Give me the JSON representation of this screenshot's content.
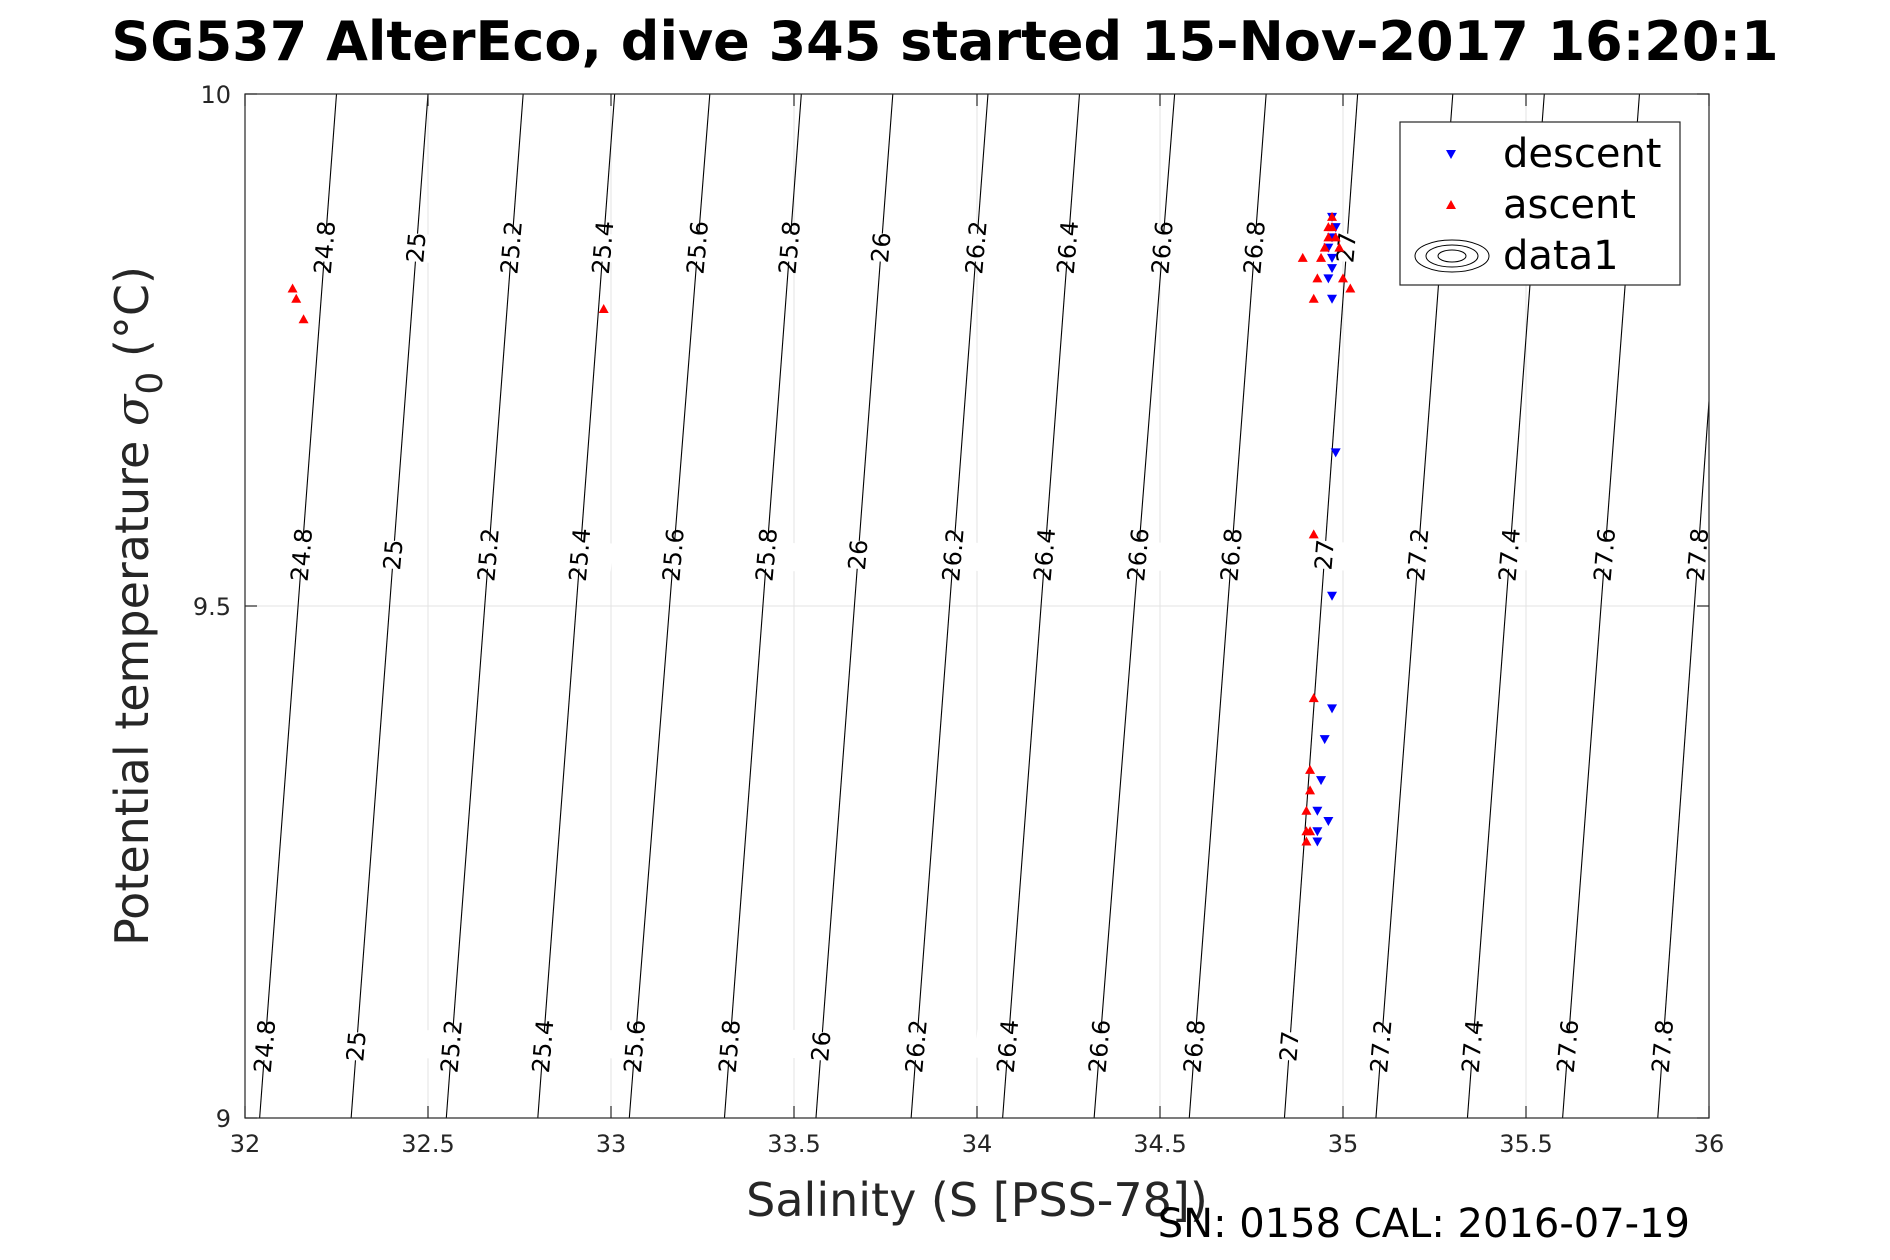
{
  "chart_data": {
    "type": "scatter",
    "title": "SG537 AlterEco, dive 345 started 15-Nov-2017 16:20:1",
    "xlabel": "Salinity (S [PSS-78])",
    "ylabel_main": "Potential temperature ",
    "ylabel_sigma": "σ",
    "ylabel_sub": "0",
    "ylabel_unit": " (°C)",
    "xlim": [
      32,
      36
    ],
    "ylim": [
      9,
      10
    ],
    "x_ticks": [
      32,
      32.5,
      33,
      33.5,
      34,
      34.5,
      35,
      35.5,
      36
    ],
    "x_tick_labels": [
      "32",
      "32.5",
      "33",
      "33.5",
      "34",
      "34.5",
      "35",
      "35.5",
      "36"
    ],
    "y_ticks": [
      9,
      9.5,
      10
    ],
    "y_tick_labels": [
      "9",
      "9.5",
      "10"
    ],
    "grid": true,
    "legend_position": "top-right",
    "legend": [
      "descent",
      "ascent",
      "data1"
    ],
    "series": [
      {
        "name": "descent",
        "color": "#0000ff",
        "marker": "triangle-down",
        "points": [
          [
            34.96,
            9.29
          ],
          [
            34.93,
            9.27
          ],
          [
            34.93,
            9.28
          ],
          [
            34.95,
            9.37
          ],
          [
            34.94,
            9.33
          ],
          [
            34.93,
            9.3
          ],
          [
            34.97,
            9.4
          ],
          [
            34.97,
            9.51
          ],
          [
            34.98,
            9.65
          ],
          [
            34.97,
            9.8
          ],
          [
            34.96,
            9.82
          ],
          [
            34.97,
            9.83
          ],
          [
            34.97,
            9.84
          ],
          [
            34.96,
            9.85
          ],
          [
            34.97,
            9.86
          ],
          [
            34.98,
            9.87
          ],
          [
            34.97,
            9.88
          ]
        ]
      },
      {
        "name": "ascent",
        "color": "#ff0000",
        "marker": "triangle-up",
        "points": [
          [
            32.13,
            9.81
          ],
          [
            32.14,
            9.8
          ],
          [
            32.16,
            9.78
          ],
          [
            32.98,
            9.79
          ],
          [
            34.89,
            9.84
          ],
          [
            34.92,
            9.8
          ],
          [
            34.93,
            9.82
          ],
          [
            34.94,
            9.84
          ],
          [
            34.95,
            9.85
          ],
          [
            34.96,
            9.86
          ],
          [
            34.96,
            9.87
          ],
          [
            34.97,
            9.88
          ],
          [
            34.97,
            9.87
          ],
          [
            34.98,
            9.86
          ],
          [
            34.99,
            9.85
          ],
          [
            35.0,
            9.82
          ],
          [
            35.02,
            9.81
          ],
          [
            34.92,
            9.57
          ],
          [
            34.92,
            9.41
          ],
          [
            34.91,
            9.34
          ],
          [
            34.91,
            9.32
          ],
          [
            34.9,
            9.3
          ],
          [
            34.9,
            9.28
          ],
          [
            34.9,
            9.27
          ],
          [
            34.91,
            9.28
          ]
        ]
      }
    ],
    "contours": {
      "levels": [
        24.8,
        25,
        25.2,
        25.4,
        25.6,
        25.8,
        26,
        26.2,
        26.4,
        26.6,
        26.8,
        27,
        27.2,
        27.4,
        27.6,
        27.8
      ],
      "labels": [
        "24.8",
        "25",
        "25.2",
        "25.4",
        "25.6",
        "25.8",
        "26",
        "26.2",
        "26.4",
        "26.6",
        "26.8",
        "27",
        "27.2",
        "27.4",
        "27.6",
        "27.8"
      ],
      "salinity_at_9C": [
        32.04,
        32.29,
        32.55,
        32.8,
        33.05,
        33.31,
        33.56,
        33.82,
        34.07,
        34.32,
        34.58,
        34.84,
        35.09,
        35.34,
        35.6,
        35.86
      ],
      "salinity_at_10C": [
        32.25,
        32.5,
        32.76,
        33.01,
        33.27,
        33.52,
        33.77,
        34.03,
        34.28,
        34.54,
        34.79,
        35.04,
        35.3,
        35.55,
        35.81,
        36.06
      ],
      "labels_at_temps": [
        9.07,
        9.55
      ],
      "top_labels_at_temp": 9.85,
      "top_label_count": 12
    }
  },
  "footer": "SN: 0158  CAL: 2016-07-19"
}
